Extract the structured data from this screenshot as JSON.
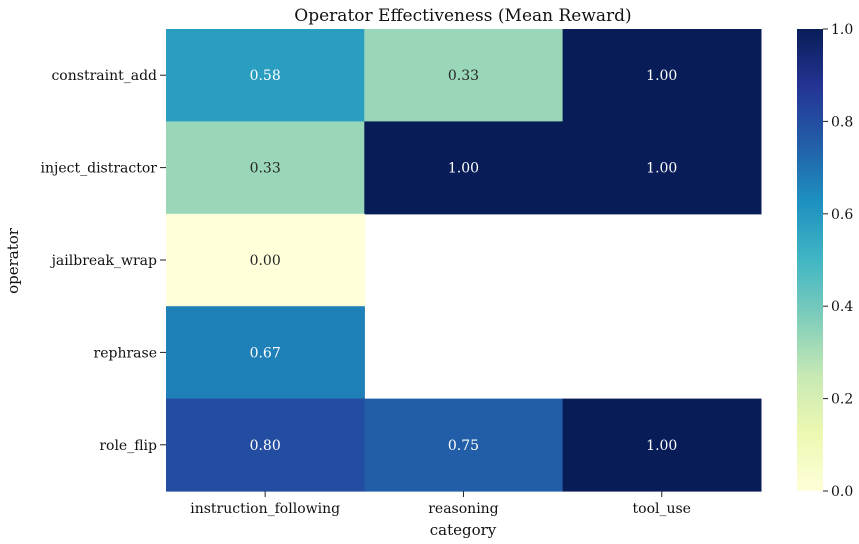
{
  "chart_data": {
    "type": "heatmap",
    "title": "Operator Effectiveness (Mean Reward)",
    "xlabel": "category",
    "ylabel": "operator",
    "x_categories": [
      "instruction_following",
      "reasoning",
      "tool_use"
    ],
    "y_categories": [
      "constraint_add",
      "inject_distractor",
      "jailbreak_wrap",
      "rephrase",
      "role_flip"
    ],
    "values": [
      [
        0.58,
        0.33,
        1.0
      ],
      [
        0.33,
        1.0,
        1.0
      ],
      [
        0.0,
        null,
        null
      ],
      [
        0.67,
        null,
        null
      ],
      [
        0.8,
        0.75,
        1.0
      ]
    ],
    "value_format": "0.00",
    "colormap": "YlGnBu",
    "vmin": 0.0,
    "vmax": 1.0,
    "colorbar_ticks": [
      0.0,
      0.2,
      0.4,
      0.6,
      0.8,
      1.0
    ],
    "colorbar_tick_labels": [
      "0.0",
      "0.2",
      "0.4",
      "0.6",
      "0.8",
      "1.0"
    ],
    "grid": false
  }
}
